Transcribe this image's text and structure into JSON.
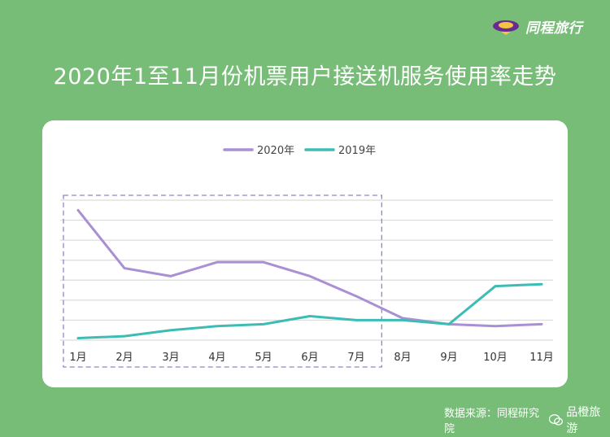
{
  "brand": {
    "name": "同程旅行",
    "icon": "tongcheng-logo-icon"
  },
  "title": "2020年1至11月份机票用户接送机服务使用率走势",
  "footer": {
    "source": "数据来源：同程研究院",
    "watermark": "品橙旅游",
    "watermark_icon": "wechat-icon"
  },
  "colors": {
    "background": "#77bd78",
    "series_2020": "#a98fd4",
    "series_2019": "#3cbcb4",
    "highlight_box": "#8d86c8"
  },
  "chart_data": {
    "type": "line",
    "categories": [
      "1月",
      "2月",
      "3月",
      "4月",
      "5月",
      "6月",
      "7月",
      "8月",
      "9月",
      "10月",
      "11月"
    ],
    "series": [
      {
        "name": "2020年",
        "color": "#a98fd4",
        "values": [
          6.5,
          3.6,
          3.2,
          3.9,
          3.9,
          3.2,
          2.2,
          1.1,
          0.8,
          0.7,
          0.8
        ]
      },
      {
        "name": "2019年",
        "color": "#3cbcb4",
        "values": [
          0.1,
          0.2,
          0.5,
          0.7,
          0.8,
          1.2,
          1.0,
          1.0,
          0.8,
          2.7,
          2.8
        ]
      }
    ],
    "ylim": [
      0,
      7
    ],
    "gridlines": 8,
    "y_axis_labels": false,
    "legend": "top-center",
    "highlight": {
      "from": "1月",
      "to": "7月",
      "style": "dashed-box"
    }
  }
}
